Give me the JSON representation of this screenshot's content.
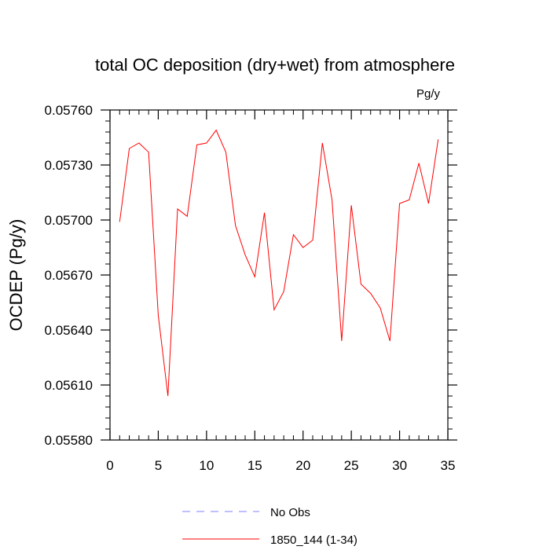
{
  "chart_data": {
    "type": "line",
    "title": "total OC deposition (dry+wet) from atmosphere",
    "units": "Pg/y",
    "xlabel": "",
    "ylabel": "OCDEP  (Pg/y)",
    "xlim": [
      0,
      35
    ],
    "ylim": [
      0.0558,
      0.0576
    ],
    "xticks": [
      0,
      5,
      10,
      15,
      20,
      25,
      30,
      35
    ],
    "xtick_labels": [
      "0",
      "5",
      "10",
      "15",
      "20",
      "25",
      "30",
      "35"
    ],
    "yticks": [
      0.0558,
      0.0561,
      0.0564,
      0.0567,
      0.057,
      0.0573,
      0.0576
    ],
    "ytick_labels": [
      "0.05580",
      "0.05610",
      "0.05640",
      "0.05670",
      "0.05700",
      "0.05730",
      "0.05760"
    ],
    "grid": false,
    "legend_position": "bottom",
    "series": [
      {
        "name": "1850_144 (1-34)",
        "color": "#ff0000",
        "style": "solid",
        "x": [
          1,
          2,
          3,
          4,
          5,
          6,
          7,
          8,
          9,
          10,
          11,
          12,
          13,
          14,
          15,
          16,
          17,
          18,
          19,
          20,
          21,
          22,
          23,
          24,
          25,
          26,
          27,
          28,
          29,
          30,
          31,
          32,
          33,
          34
        ],
        "y": [
          0.05699,
          0.05739,
          0.05742,
          0.05737,
          0.05648,
          0.05604,
          0.05706,
          0.05702,
          0.05741,
          0.05742,
          0.05749,
          0.05737,
          0.05697,
          0.05681,
          0.05669,
          0.05704,
          0.05651,
          0.05661,
          0.05692,
          0.05685,
          0.05689,
          0.05742,
          0.05711,
          0.05634,
          0.05708,
          0.05665,
          0.0566,
          0.05652,
          0.05634,
          0.05709,
          0.05711,
          0.05731,
          0.05709,
          0.05744
        ]
      }
    ],
    "legend": [
      {
        "label": "No Obs",
        "color": "#8080ff",
        "style": "dashed"
      },
      {
        "label": "1850_144 (1-34)",
        "color": "#ff0000",
        "style": "solid"
      }
    ]
  }
}
